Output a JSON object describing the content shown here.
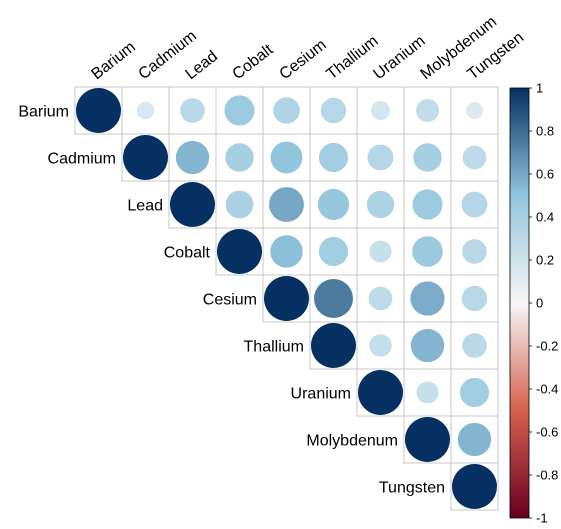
{
  "chart_data": {
    "type": "heatmap",
    "variant": "correlation-circle-upper-triangle",
    "variables": [
      "Barium",
      "Cadmium",
      "Lead",
      "Cobalt",
      "Cesium",
      "Thallium",
      "Uranium",
      "Molybdenum",
      "Tungsten"
    ],
    "matrix": [
      [
        1.0,
        0.15,
        0.3,
        0.45,
        0.35,
        0.32,
        0.18,
        0.26,
        0.14
      ],
      [
        0.15,
        1.0,
        0.55,
        0.4,
        0.5,
        0.42,
        0.33,
        0.4,
        0.28
      ],
      [
        0.3,
        0.55,
        1.0,
        0.38,
        0.6,
        0.48,
        0.37,
        0.45,
        0.33
      ],
      [
        0.45,
        0.4,
        0.38,
        1.0,
        0.52,
        0.42,
        0.24,
        0.46,
        0.3
      ],
      [
        0.35,
        0.5,
        0.6,
        0.52,
        1.0,
        0.75,
        0.28,
        0.58,
        0.32
      ],
      [
        0.32,
        0.42,
        0.48,
        0.42,
        0.75,
        1.0,
        0.25,
        0.55,
        0.3
      ],
      [
        0.18,
        0.33,
        0.37,
        0.24,
        0.28,
        0.25,
        1.0,
        0.24,
        0.42
      ],
      [
        0.26,
        0.4,
        0.45,
        0.46,
        0.58,
        0.55,
        0.24,
        1.0,
        0.55
      ],
      [
        0.14,
        0.28,
        0.33,
        0.3,
        0.32,
        0.3,
        0.42,
        0.55,
        1.0
      ]
    ],
    "colorbar": {
      "ticks": [
        "1",
        "0.8",
        "0.6",
        "0.4",
        "0.2",
        "0",
        "-0.2",
        "-0.4",
        "-0.6",
        "-0.8",
        "-1"
      ],
      "range": [
        -1,
        1
      ]
    },
    "colors": {
      "negative_end": "#67001f",
      "negative_mid": "#d6604d",
      "neutral": "#f7f7f7",
      "positive_mid": "#92c5de",
      "positive_end": "#053061",
      "grid": "#c8c8c8"
    },
    "legend_position": "right",
    "grid": true
  }
}
